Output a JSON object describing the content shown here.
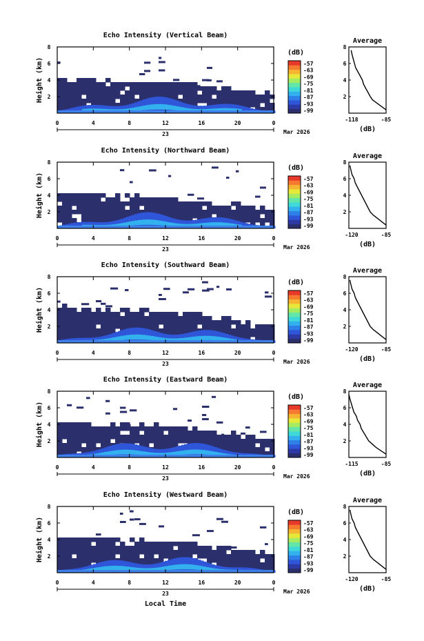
{
  "xaxis": {
    "tick_labels": [
      "0",
      "4",
      "8",
      "12",
      "16",
      "20",
      "0"
    ],
    "day_label": "23",
    "month_label": "Mar 2026",
    "label": "Local Time"
  },
  "yaxis": {
    "label": "Height (km)",
    "tick_labels": [
      "2",
      "4",
      "6",
      "8"
    ]
  },
  "colorbar": {
    "unit_label": "(dB)",
    "tick_labels": [
      "-57",
      "-63",
      "-69",
      "-75",
      "-81",
      "-87",
      "-93",
      "-99"
    ],
    "colors": [
      "#2b2f6b",
      "#2d3aa5",
      "#2f56d8",
      "#2f7fe8",
      "#33b0ee",
      "#3fd9d8",
      "#63e6a8",
      "#a6ec63",
      "#e8e83a",
      "#f6b433",
      "#f67a30",
      "#e83a2b"
    ]
  },
  "profile": {
    "title": "Average",
    "xlabel": "(dB)"
  },
  "chart_data": [
    {
      "type": "heatmap",
      "title": "Echo Intensity (Vertical Beam)",
      "ylabel": "Height (km)",
      "xlabel": "",
      "colorbar_label": "(dB)",
      "x_range_hours": [
        0,
        24
      ],
      "y_range_km": [
        0,
        8
      ],
      "color_range_db": [
        -99,
        -57
      ],
      "profile": {
        "type": "line",
        "title": "Average",
        "xlabel": "(dB)",
        "x_tick_labels": [
          "-118",
          "-85"
        ],
        "y_tick_labels": [
          "2",
          "4",
          "6",
          "8"
        ],
        "xlim": [
          -118,
          -85
        ],
        "ylim": [
          0,
          8
        ],
        "x": [
          -85,
          -89,
          -93,
          -97,
          -99,
          -101,
          -103,
          -105,
          -106,
          -108,
          -110,
          -112,
          -113,
          -114,
          -115,
          -116
        ],
        "y": [
          0.4,
          0.8,
          1.2,
          1.6,
          2.0,
          2.5,
          3.0,
          3.5,
          4.0,
          4.5,
          5.0,
          5.5,
          6.0,
          6.5,
          7.0,
          7.6
        ]
      }
    },
    {
      "type": "heatmap",
      "title": "Echo Intensity (Northward Beam)",
      "ylabel": "Height (km)",
      "xlabel": "",
      "colorbar_label": "(dB)",
      "x_range_hours": [
        0,
        24
      ],
      "y_range_km": [
        0,
        8
      ],
      "color_range_db": [
        -99,
        -57
      ],
      "profile": {
        "type": "line",
        "title": "Average",
        "xlabel": "(dB)",
        "x_tick_labels": [
          "-120",
          "-85"
        ],
        "y_tick_labels": [
          "2",
          "4",
          "6",
          "8"
        ],
        "xlim": [
          -120,
          -85
        ],
        "ylim": [
          0,
          8
        ],
        "x": [
          -85,
          -89,
          -93,
          -97,
          -100,
          -102,
          -104,
          -106,
          -108,
          -110,
          -112,
          -114,
          -115,
          -117,
          -118,
          -119
        ],
        "y": [
          0.4,
          0.8,
          1.2,
          1.6,
          2.0,
          2.5,
          3.0,
          3.5,
          4.0,
          4.5,
          5.0,
          5.5,
          6.0,
          6.5,
          7.0,
          7.6
        ]
      }
    },
    {
      "type": "heatmap",
      "title": "Echo Intensity (Southward Beam)",
      "ylabel": "Height (km)",
      "xlabel": "",
      "colorbar_label": "(dB)",
      "x_range_hours": [
        0,
        24
      ],
      "y_range_km": [
        0,
        8
      ],
      "color_range_db": [
        -99,
        -57
      ],
      "profile": {
        "type": "line",
        "title": "Average",
        "xlabel": "(dB)",
        "x_tick_labels": [
          "-120",
          "-85"
        ],
        "y_tick_labels": [
          "2",
          "4",
          "6",
          "8"
        ],
        "xlim": [
          -120,
          -85
        ],
        "ylim": [
          0,
          8
        ],
        "x": [
          -85,
          -89,
          -93,
          -97,
          -100,
          -102,
          -104,
          -106,
          -108,
          -110,
          -112,
          -114,
          -115,
          -117,
          -118,
          -119
        ],
        "y": [
          0.4,
          0.8,
          1.2,
          1.6,
          2.0,
          2.5,
          3.0,
          3.5,
          4.0,
          4.5,
          5.0,
          5.5,
          6.0,
          6.5,
          7.0,
          7.6
        ]
      }
    },
    {
      "type": "heatmap",
      "title": "Echo Intensity (Eastward Beam)",
      "ylabel": "Height (km)",
      "xlabel": "",
      "colorbar_label": "(dB)",
      "x_range_hours": [
        0,
        24
      ],
      "y_range_km": [
        0,
        8
      ],
      "color_range_db": [
        -99,
        -57
      ],
      "profile": {
        "type": "line",
        "title": "Average",
        "xlabel": "(dB)",
        "x_tick_labels": [
          "-115",
          "-85"
        ],
        "y_tick_labels": [
          "2",
          "4",
          "6",
          "8"
        ],
        "xlim": [
          -115,
          -85
        ],
        "ylim": [
          0,
          8
        ],
        "x": [
          -85,
          -89,
          -93,
          -96,
          -99,
          -101,
          -103,
          -105,
          -106,
          -108,
          -109,
          -111,
          -112,
          -113,
          -114,
          -115
        ],
        "y": [
          0.4,
          0.8,
          1.2,
          1.6,
          2.0,
          2.5,
          3.0,
          3.5,
          4.0,
          4.5,
          5.0,
          5.5,
          6.0,
          6.5,
          7.0,
          7.6
        ]
      }
    },
    {
      "type": "heatmap",
      "title": "Echo Intensity (Westward Beam)",
      "ylabel": "Height (km)",
      "xlabel": "Local Time",
      "colorbar_label": "(dB)",
      "x_range_hours": [
        0,
        24
      ],
      "y_range_km": [
        0,
        8
      ],
      "color_range_db": [
        -99,
        -57
      ],
      "profile": {
        "type": "line",
        "title": "Average",
        "xlabel": "(dB)",
        "x_tick_labels": [
          "-120",
          "-85"
        ],
        "y_tick_labels": [
          "2",
          "4",
          "6",
          "8"
        ],
        "xlim": [
          -120,
          -85
        ],
        "ylim": [
          0,
          8
        ],
        "x": [
          -85,
          -89,
          -93,
          -97,
          -100,
          -102,
          -104,
          -106,
          -108,
          -110,
          -112,
          -114,
          -115,
          -117,
          -118,
          -119
        ],
        "y": [
          0.4,
          0.8,
          1.2,
          1.6,
          2.0,
          2.5,
          3.0,
          3.5,
          4.0,
          4.5,
          5.0,
          5.5,
          6.0,
          6.5,
          7.0,
          7.6
        ]
      }
    }
  ]
}
